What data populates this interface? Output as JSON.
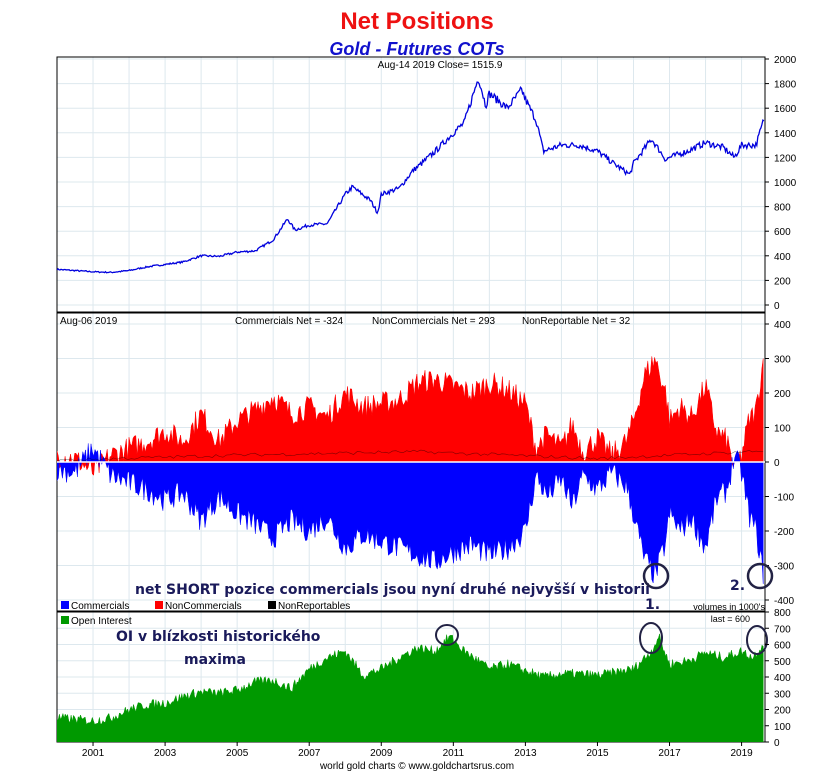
{
  "title": "Net Positions",
  "subtitle": "Gold - Futures COTs",
  "footer": "world gold charts © www.goldchartsrus.com",
  "colors": {
    "price": "#0000dd",
    "commercials": "#0000ff",
    "noncommercials": "#ff0000",
    "nonreportables": "#000000",
    "open_interest": "#009900",
    "title": "#ee1111",
    "subtitle": "#1111cc",
    "annotation": "#1a1a5a"
  },
  "price_panel": {
    "header": "Aug-14  2019   Close= 1515.9",
    "yticks": [
      0,
      200,
      400,
      600,
      800,
      1000,
      1200,
      1400,
      1600,
      1800,
      2000
    ]
  },
  "net_panel": {
    "date": "Aug-06  2019",
    "commercials_net": "Commercials Net = -324",
    "noncommercials_net": "NonCommercials Net = 293",
    "nonreportable_net": "NonReportable Net = 32",
    "yticks": [
      -400,
      -300,
      -200,
      -100,
      0,
      100,
      200,
      300,
      400
    ],
    "legend": [
      "Commercials",
      "NonCommercials",
      "NonReportables"
    ],
    "annotation": "net SHORT pozice commercials jsou nyní druhé nejvyšší v historii",
    "marker_labels": [
      "1.",
      "2."
    ]
  },
  "oi_panel": {
    "legend": "Open Interest",
    "units_note": "volumes in 1000's",
    "last_note": "last = 600",
    "annotation_line1": "OI v blízkosti historického",
    "annotation_line2": "maxima",
    "yticks": [
      0,
      100,
      200,
      300,
      400,
      500,
      600,
      700,
      800
    ]
  },
  "chart_data": [
    {
      "type": "line",
      "series": [
        {
          "name": "Gold",
          "x": [
            2000,
            2001,
            2001.5,
            2002,
            2002.5,
            2003,
            2003.5,
            2004,
            2004.5,
            2005,
            2005.5,
            2006,
            2006.4,
            2006.6,
            2007,
            2007.5,
            2008,
            2008.2,
            2008.7,
            2008.9,
            2009,
            2009.5,
            2009.9,
            2010,
            2010.5,
            2011,
            2011.3,
            2011.7,
            2011.9,
            2012,
            2012.5,
            2012.9,
            2013,
            2013.3,
            2013.5,
            2014,
            2014.5,
            2015,
            2015.5,
            2015.9,
            2016,
            2016.5,
            2016.9,
            2017,
            2017.5,
            2018,
            2018.5,
            2018.8,
            2019,
            2019.4,
            2019.62
          ],
          "y": [
            290,
            270,
            265,
            280,
            310,
            330,
            350,
            400,
            395,
            430,
            440,
            530,
            700,
            610,
            650,
            660,
            900,
            960,
            850,
            750,
            900,
            950,
            1100,
            1120,
            1250,
            1400,
            1480,
            1850,
            1620,
            1720,
            1600,
            1750,
            1670,
            1500,
            1250,
            1300,
            1300,
            1250,
            1140,
            1060,
            1150,
            1350,
            1180,
            1200,
            1250,
            1320,
            1280,
            1200,
            1300,
            1300,
            1510
          ]
        }
      ],
      "ylim": [
        0,
        2000
      ],
      "xlim": [
        2000,
        2019.65
      ]
    },
    {
      "type": "area",
      "series": [
        {
          "name": "NonCommercials",
          "x": [
            2000,
            2000.5,
            2001,
            2001.5,
            2002,
            2002.5,
            2003,
            2003.5,
            2004,
            2004.5,
            2005,
            2005.5,
            2006,
            2006.5,
            2007,
            2007.5,
            2008,
            2008.5,
            2009,
            2009.5,
            2010,
            2010.5,
            2011,
            2011.5,
            2012,
            2012.5,
            2013,
            2013.3,
            2013.6,
            2014,
            2014.3,
            2014.6,
            2015,
            2015.4,
            2015.8,
            2016,
            2016.3,
            2016.6,
            2016.9,
            2017,
            2017.3,
            2017.6,
            2018,
            2018.3,
            2018.6,
            2018.8,
            2019,
            2019.2,
            2019.4,
            2019.6
          ],
          "y": [
            20,
            10,
            -30,
            20,
            40,
            60,
            90,
            60,
            140,
            60,
            120,
            150,
            190,
            140,
            160,
            130,
            200,
            160,
            170,
            180,
            230,
            240,
            220,
            200,
            230,
            210,
            170,
            40,
            80,
            40,
            110,
            30,
            70,
            20,
            60,
            120,
            250,
            300,
            200,
            120,
            160,
            130,
            220,
            90,
            60,
            -20,
            20,
            120,
            150,
            293
          ]
        },
        {
          "name": "Commercials",
          "x": [
            2000,
            2000.5,
            2001,
            2001.5,
            2002,
            2002.5,
            2003,
            2003.5,
            2004,
            2004.5,
            2005,
            2005.5,
            2006,
            2006.5,
            2007,
            2007.5,
            2008,
            2008.5,
            2009,
            2009.5,
            2010,
            2010.5,
            2011,
            2011.5,
            2012,
            2012.5,
            2013,
            2013.3,
            2013.6,
            2014,
            2014.3,
            2014.6,
            2015,
            2015.4,
            2015.8,
            2016,
            2016.3,
            2016.6,
            2016.9,
            2017,
            2017.3,
            2017.6,
            2018,
            2018.3,
            2018.6,
            2018.8,
            2019,
            2019.2,
            2019.4,
            2019.6
          ],
          "y": [
            -20,
            -30,
            40,
            -40,
            -60,
            -80,
            -110,
            -90,
            -170,
            -100,
            -150,
            -180,
            -220,
            -170,
            -200,
            -160,
            -250,
            -210,
            -230,
            -250,
            -270,
            -290,
            -260,
            -240,
            -270,
            -250,
            -200,
            -40,
            -100,
            -50,
            -130,
            -40,
            -80,
            -30,
            -70,
            -150,
            -280,
            -330,
            -230,
            -150,
            -200,
            -160,
            -250,
            -110,
            -80,
            20,
            -30,
            -150,
            -200,
            -324
          ]
        },
        {
          "name": "NonReportables",
          "x": [
            2000,
            2005,
            2010,
            2015,
            2019.6
          ],
          "y": [
            5,
            20,
            30,
            10,
            32
          ]
        }
      ],
      "ylim": [
        -400,
        400
      ],
      "xlim": [
        2000,
        2019.65
      ]
    },
    {
      "type": "area",
      "series": [
        {
          "name": "Open Interest",
          "x": [
            2000,
            2000.5,
            2001,
            2001.5,
            2002,
            2002.5,
            2003,
            2003.5,
            2004,
            2004.5,
            2005,
            2005.5,
            2006,
            2006.5,
            2007,
            2007.5,
            2008,
            2008.5,
            2009,
            2009.5,
            2010,
            2010.5,
            2010.9,
            2011.3,
            2011.7,
            2012,
            2012.5,
            2013,
            2013.5,
            2014,
            2014.5,
            2015,
            2015.5,
            2016,
            2016.5,
            2016.7,
            2017,
            2017.5,
            2018,
            2018.5,
            2019,
            2019.3,
            2019.6
          ],
          "y": [
            150,
            140,
            130,
            150,
            200,
            230,
            240,
            280,
            310,
            300,
            320,
            370,
            380,
            330,
            450,
            520,
            560,
            410,
            450,
            520,
            580,
            560,
            650,
            560,
            500,
            450,
            480,
            440,
            400,
            420,
            420,
            410,
            430,
            450,
            560,
            650,
            480,
            500,
            550,
            520,
            560,
            520,
            600
          ]
        }
      ],
      "ylim": [
        0,
        800
      ],
      "xlim": [
        2000,
        2019.65
      ]
    }
  ],
  "x_tick_labels": [
    "2001",
    "2003",
    "2005",
    "2007",
    "2009",
    "2011",
    "2013",
    "2015",
    "2017",
    "2019"
  ],
  "x_tick_values": [
    2001,
    2003,
    2005,
    2007,
    2009,
    2011,
    2013,
    2015,
    2017,
    2019
  ]
}
